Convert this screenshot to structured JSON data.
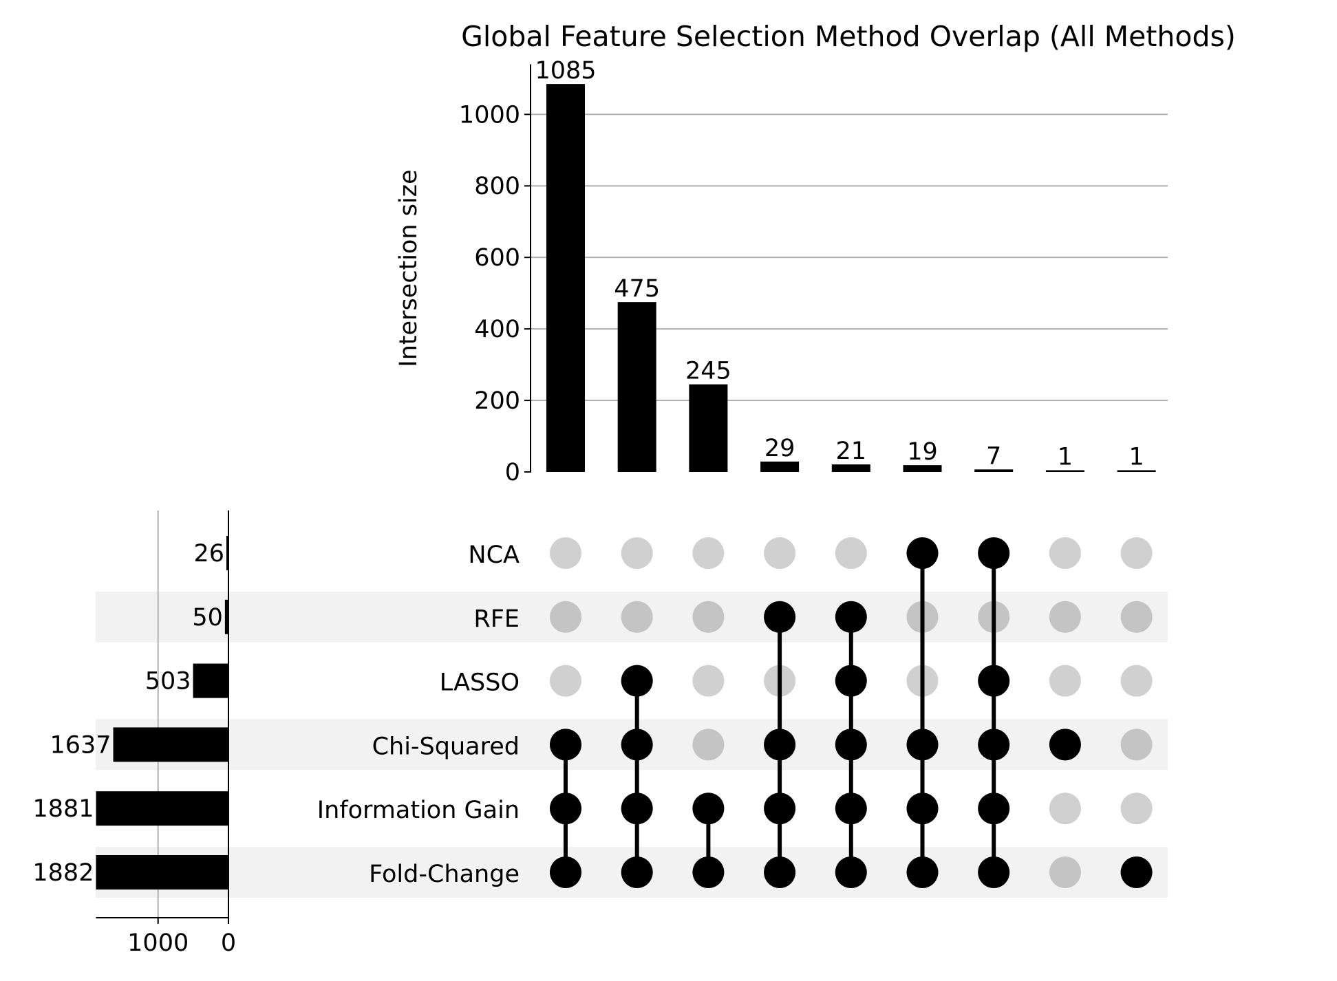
{
  "chart_data": {
    "type": "upset",
    "title": "Global Feature Selection Method Overlap (All Methods)",
    "intersection_axis_label": "Intersection size",
    "intersection_ylim": [
      0,
      1140
    ],
    "intersection_yticks": [
      0,
      200,
      400,
      600,
      800,
      1000
    ],
    "set_size_ticks": [
      1000,
      0
    ],
    "set_size_xlim": [
      0,
      1882
    ],
    "sets": [
      {
        "name": "NCA",
        "size": 26
      },
      {
        "name": "RFE",
        "size": 50
      },
      {
        "name": "LASSO",
        "size": 503
      },
      {
        "name": "Chi-Squared",
        "size": 1637
      },
      {
        "name": "Information Gain",
        "size": 1881
      },
      {
        "name": "Fold-Change",
        "size": 1882
      }
    ],
    "intersections": [
      {
        "size": 1085,
        "label": "1085",
        "members": [
          "Chi-Squared",
          "Information Gain",
          "Fold-Change"
        ]
      },
      {
        "size": 475,
        "label": "475",
        "members": [
          "LASSO",
          "Chi-Squared",
          "Information Gain",
          "Fold-Change"
        ]
      },
      {
        "size": 245,
        "label": "245",
        "members": [
          "Information Gain",
          "Fold-Change"
        ]
      },
      {
        "size": 29,
        "label": "29",
        "members": [
          "RFE",
          "Chi-Squared",
          "Information Gain",
          "Fold-Change"
        ]
      },
      {
        "size": 21,
        "label": "21",
        "members": [
          "RFE",
          "LASSO",
          "Chi-Squared",
          "Information Gain",
          "Fold-Change"
        ]
      },
      {
        "size": 19,
        "label": "19",
        "members": [
          "NCA",
          "Chi-Squared",
          "Information Gain",
          "Fold-Change"
        ]
      },
      {
        "size": 7,
        "label": "7",
        "members": [
          "NCA",
          "LASSO",
          "Chi-Squared",
          "Information Gain",
          "Fold-Change"
        ]
      },
      {
        "size": 1,
        "label": "1",
        "members": [
          "Chi-Squared"
        ]
      },
      {
        "size": 1,
        "label": "1",
        "members": [
          "Fold-Change"
        ]
      }
    ],
    "grid": true,
    "colors": {
      "bar": "#000000",
      "dot_active": "#000000",
      "dot_inactive": "#d0d0d0",
      "dot_inactive_shaded_row": "#c4c4c4",
      "row_shade": "#f2f2f2",
      "grid": "#b0b0b0"
    }
  }
}
